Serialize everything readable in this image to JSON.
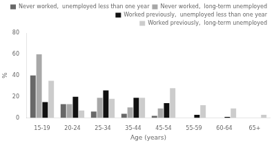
{
  "chart_data": {
    "type": "bar",
    "xlabel": "Age (years)",
    "ylabel": "%",
    "categories": [
      "15-19",
      "20-24",
      "25-34",
      "35-44",
      "45-54",
      "55-59",
      "60-64",
      "65+"
    ],
    "series": [
      {
        "name": "Never worked,  unemployed less than one year",
        "color": "#686868",
        "values": [
          40,
          13,
          6,
          4,
          2,
          0,
          0,
          0
        ]
      },
      {
        "name": "Never worked,  long-term unemployed",
        "color": "#a8a8a8",
        "values": [
          60,
          13,
          19,
          10,
          9,
          0,
          0,
          0
        ]
      },
      {
        "name": "Worked previously,  unemployed less than one year",
        "color": "#111111",
        "values": [
          15,
          20,
          26,
          19,
          14,
          3,
          1,
          0
        ]
      },
      {
        "name": "Worked previously,  long-term unemployed",
        "color": "#cccccc",
        "values": [
          35,
          7,
          18,
          19,
          28,
          12,
          9,
          3
        ]
      }
    ],
    "ylim": [
      0,
      80
    ],
    "yticks": [
      0,
      20,
      40,
      60,
      80
    ],
    "grid": false,
    "legend": "upper right"
  }
}
